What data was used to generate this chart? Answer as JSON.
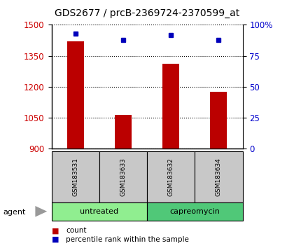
{
  "title": "GDS2677 / prcB-2369724-2370599_at",
  "samples": [
    "GSM183531",
    "GSM183633",
    "GSM183632",
    "GSM183634"
  ],
  "counts": [
    1420,
    1065,
    1310,
    1175
  ],
  "percentile_ranks": [
    93,
    88,
    92,
    88
  ],
  "ylim_left": [
    900,
    1500
  ],
  "ylim_right": [
    0,
    100
  ],
  "yticks_left": [
    900,
    1050,
    1200,
    1350,
    1500
  ],
  "yticks_right": [
    0,
    25,
    50,
    75,
    100
  ],
  "ytick_labels_right": [
    "0",
    "25",
    "50",
    "75",
    "100%"
  ],
  "groups": [
    {
      "label": "untreated",
      "color": "#90ee90",
      "indices": [
        0,
        1
      ]
    },
    {
      "label": "capreomycin",
      "color": "#50c878",
      "indices": [
        2,
        3
      ]
    }
  ],
  "bar_color": "#bb0000",
  "dot_color": "#0000bb",
  "bar_width": 0.35,
  "left_tick_color": "#cc0000",
  "right_tick_color": "#0000cc",
  "agent_label": "agent",
  "legend_count_label": "count",
  "legend_pct_label": "percentile rank within the sample",
  "sample_box_color": "#c8c8c8",
  "title_fontsize": 10,
  "tick_fontsize": 8.5
}
